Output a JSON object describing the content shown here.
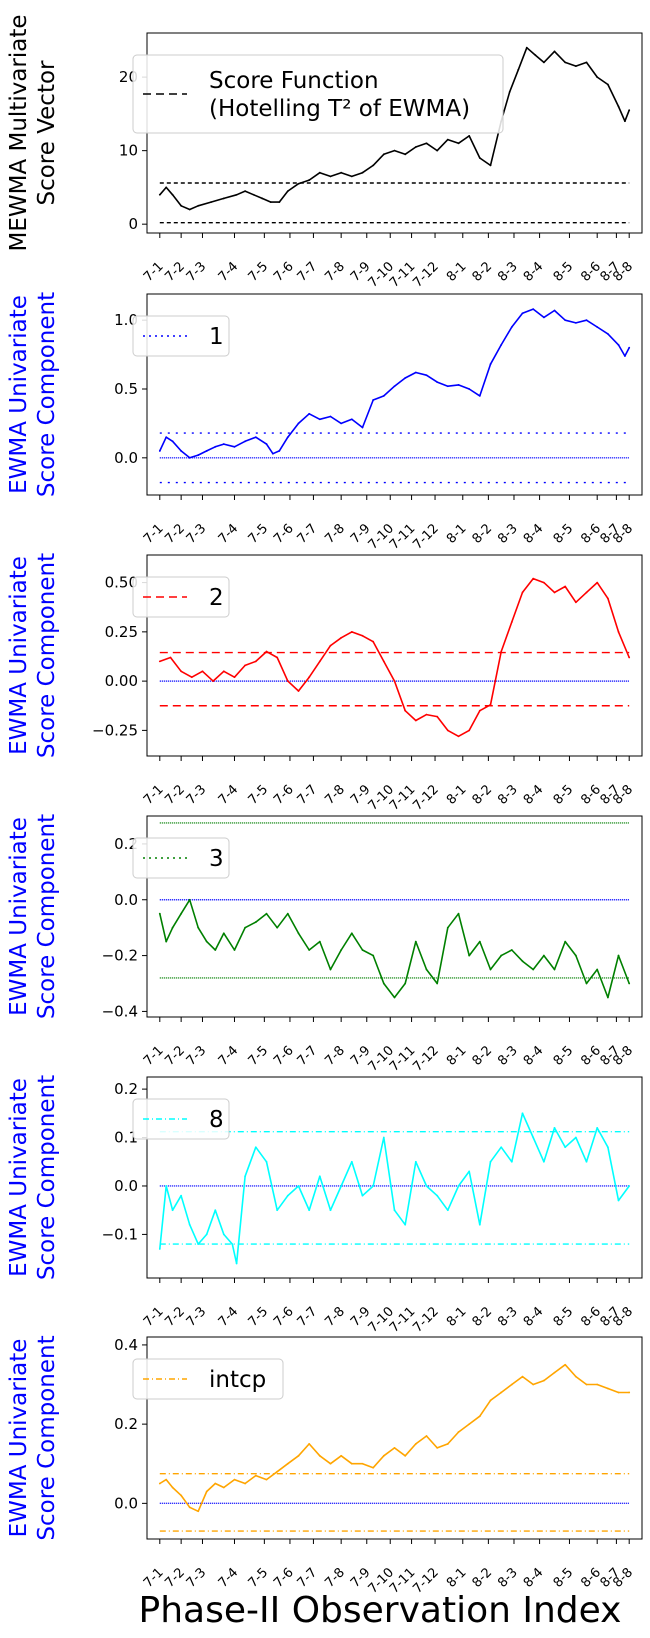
{
  "figure": {
    "xlabel": "Phase-II Observation Index"
  },
  "chart_data": [
    {
      "type": "line",
      "ylabel": [
        "MEWMA Multivariate",
        "Score Vector"
      ],
      "ylabel_color": "#000000",
      "ylim": [
        -1.2,
        26
      ],
      "yticks": [
        0,
        10,
        20
      ],
      "ytick_labels": [
        "0",
        "10",
        "20"
      ],
      "legend": {
        "label": [
          "Score Function",
          "(Hotelling T² of EWMA)"
        ],
        "style": "dashed",
        "color": "#000000",
        "placement": "upper-left"
      },
      "series": [
        {
          "color": "#000000",
          "x": [
            0,
            0.3,
            0.6,
            1.0,
            1.4,
            1.8,
            2.4,
            3.0,
            3.6,
            4.0,
            4.4,
            4.8,
            5.2,
            5.6,
            6.0,
            6.5,
            7.0,
            7.5,
            8.0,
            8.5,
            9.0,
            9.5,
            10.0,
            10.5,
            11.0,
            11.5,
            12.0,
            12.5,
            13.0,
            13.5,
            14.0,
            14.5,
            15.0,
            15.5,
            16.0,
            16.4,
            16.8,
            17.2,
            17.6,
            18.0,
            18.5,
            19.0,
            19.5,
            20.0,
            20.5,
            21.0,
            21.5,
            21.8,
            22.0
          ],
          "y": [
            4,
            5,
            4,
            2.5,
            2,
            2.5,
            3,
            3.5,
            4,
            4.5,
            4,
            3.5,
            3,
            3,
            4.5,
            5.5,
            6,
            7,
            6.5,
            7,
            6.5,
            7,
            8,
            9.5,
            10,
            9.5,
            10.5,
            11,
            10,
            11.5,
            11,
            12,
            9,
            8,
            14,
            18,
            21,
            24,
            23,
            22,
            23.5,
            22,
            21.5,
            22,
            20,
            19,
            16,
            14,
            15.5
          ]
        }
      ],
      "hlines": [
        {
          "y": 5.6,
          "color": "#000000",
          "dash": "4 3"
        },
        {
          "y": 0.2,
          "color": "#000000",
          "dash": "4 3"
        }
      ]
    },
    {
      "type": "line",
      "ylabel": [
        "EWMA Univariate",
        "Score Component"
      ],
      "ylabel_color": "#0000ff",
      "ylim": [
        -0.27,
        1.19
      ],
      "yticks": [
        0,
        0.5,
        1.0
      ],
      "ytick_labels": [
        "0.0",
        "0.5",
        "1.0"
      ],
      "legend": {
        "label": [
          "1"
        ],
        "style": "dotted",
        "color": "#0000ff",
        "placement": "upper-left"
      },
      "series": [
        {
          "color": "#0000ff",
          "x": [
            0,
            0.3,
            0.6,
            1.0,
            1.4,
            1.8,
            2.2,
            2.6,
            3.0,
            3.5,
            4.0,
            4.5,
            5.0,
            5.3,
            5.6,
            6.0,
            6.5,
            7.0,
            7.5,
            8.0,
            8.5,
            9.0,
            9.5,
            10.0,
            10.5,
            11.0,
            11.5,
            12.0,
            12.5,
            13.0,
            13.5,
            14.0,
            14.5,
            15.0,
            15.5,
            16.0,
            16.5,
            17.0,
            17.5,
            18.0,
            18.5,
            19.0,
            19.5,
            20.0,
            20.5,
            21.0,
            21.5,
            21.8,
            22.0
          ],
          "y": [
            0.05,
            0.15,
            0.12,
            0.05,
            0,
            0.02,
            0.05,
            0.08,
            0.1,
            0.08,
            0.12,
            0.15,
            0.1,
            0.03,
            0.05,
            0.15,
            0.25,
            0.32,
            0.28,
            0.3,
            0.25,
            0.28,
            0.22,
            0.42,
            0.45,
            0.52,
            0.58,
            0.62,
            0.6,
            0.55,
            0.52,
            0.53,
            0.5,
            0.45,
            0.68,
            0.82,
            0.95,
            1.05,
            1.08,
            1.02,
            1.07,
            1.0,
            0.98,
            1.0,
            0.95,
            0.9,
            0.82,
            0.74,
            0.8
          ]
        }
      ],
      "hlines": [
        {
          "y": 0.18,
          "color": "#0000ff",
          "dash": "2 6"
        },
        {
          "y": 0,
          "color": "#0000ff",
          "dash": "1 1"
        },
        {
          "y": -0.18,
          "color": "#0000ff",
          "dash": "2 6"
        }
      ]
    },
    {
      "type": "line",
      "ylabel": [
        "EWMA Univariate",
        "Score Component"
      ],
      "ylabel_color": "#0000ff",
      "ylim": [
        -0.38,
        0.64
      ],
      "yticks": [
        -0.25,
        0,
        0.25,
        0.5
      ],
      "ytick_labels": [
        "−0.25",
        "0.00",
        "0.25",
        "0.50"
      ],
      "legend": {
        "label": [
          "2"
        ],
        "style": "dashed",
        "color": "#ff0000",
        "placement": "upper-left"
      },
      "series": [
        {
          "color": "#ff0000",
          "x": [
            0,
            0.5,
            1.0,
            1.5,
            2.0,
            2.5,
            3.0,
            3.5,
            4.0,
            4.5,
            5.0,
            5.5,
            6.0,
            6.5,
            7.0,
            7.5,
            8.0,
            8.5,
            9.0,
            9.5,
            10.0,
            10.5,
            11.0,
            11.5,
            12.0,
            12.5,
            13.0,
            13.5,
            14.0,
            14.5,
            15.0,
            15.5,
            16.0,
            16.5,
            17.0,
            17.5,
            18.0,
            18.5,
            19.0,
            19.5,
            20.0,
            20.5,
            21.0,
            21.5,
            22.0
          ],
          "y": [
            0.1,
            0.12,
            0.05,
            0.02,
            0.05,
            0.0,
            0.05,
            0.02,
            0.08,
            0.1,
            0.15,
            0.12,
            0.0,
            -0.05,
            0.02,
            0.1,
            0.18,
            0.22,
            0.25,
            0.23,
            0.2,
            0.1,
            0.0,
            -0.15,
            -0.2,
            -0.17,
            -0.18,
            -0.25,
            -0.28,
            -0.25,
            -0.15,
            -0.12,
            0.15,
            0.3,
            0.45,
            0.52,
            0.5,
            0.45,
            0.48,
            0.4,
            0.45,
            0.5,
            0.42,
            0.25,
            0.12
          ]
        }
      ],
      "hlines": [
        {
          "y": 0.145,
          "color": "#ff0000",
          "dash": "8 5"
        },
        {
          "y": 0,
          "color": "#0000ff",
          "dash": "1 1"
        },
        {
          "y": -0.125,
          "color": "#ff0000",
          "dash": "8 5"
        }
      ]
    },
    {
      "type": "line",
      "ylabel": [
        "EWMA Univariate",
        "Score Component"
      ],
      "ylabel_color": "#0000ff",
      "ylim": [
        -0.42,
        0.3
      ],
      "yticks": [
        -0.4,
        -0.2,
        0,
        0.2
      ],
      "ytick_labels": [
        "−0.4",
        "−0.2",
        "0.0",
        "0.2"
      ],
      "legend": {
        "label": [
          "3"
        ],
        "style": "dotted",
        "color": "#008000",
        "placement": "upper-left"
      },
      "series": [
        {
          "color": "#008000",
          "x": [
            0,
            0.3,
            0.6,
            1.0,
            1.4,
            1.8,
            2.2,
            2.6,
            3.0,
            3.5,
            4.0,
            4.5,
            5.0,
            5.5,
            6.0,
            6.5,
            7.0,
            7.5,
            8.0,
            8.5,
            9.0,
            9.5,
            10.0,
            10.5,
            11.0,
            11.5,
            12.0,
            12.5,
            13.0,
            13.5,
            14.0,
            14.5,
            15.0,
            15.5,
            16.0,
            16.5,
            17.0,
            17.5,
            18.0,
            18.5,
            19.0,
            19.5,
            20.0,
            20.5,
            21.0,
            21.5,
            22.0
          ],
          "y": [
            -0.05,
            -0.15,
            -0.1,
            -0.05,
            0.0,
            -0.1,
            -0.15,
            -0.18,
            -0.12,
            -0.18,
            -0.1,
            -0.08,
            -0.05,
            -0.1,
            -0.05,
            -0.12,
            -0.18,
            -0.15,
            -0.25,
            -0.18,
            -0.12,
            -0.18,
            -0.2,
            -0.3,
            -0.35,
            -0.3,
            -0.15,
            -0.25,
            -0.3,
            -0.1,
            -0.05,
            -0.2,
            -0.15,
            -0.25,
            -0.2,
            -0.18,
            -0.22,
            -0.25,
            -0.2,
            -0.25,
            -0.15,
            -0.2,
            -0.3,
            -0.25,
            -0.35,
            -0.2,
            -0.3
          ]
        }
      ],
      "hlines": [
        {
          "y": 0.275,
          "color": "#008000",
          "dash": "1 1"
        },
        {
          "y": 0,
          "color": "#0000ff",
          "dash": "1 1"
        },
        {
          "y": -0.28,
          "color": "#008000",
          "dash": "1 1"
        }
      ]
    },
    {
      "type": "line",
      "ylabel": [
        "EWMA Univariate",
        "Score Component"
      ],
      "ylabel_color": "#0000ff",
      "ylim": [
        -0.19,
        0.225
      ],
      "yticks": [
        -0.1,
        0,
        0.1,
        0.2
      ],
      "ytick_labels": [
        "−0.1",
        "0.0",
        "0.1",
        "0.2"
      ],
      "legend": {
        "label": [
          "8"
        ],
        "style": "dashdot",
        "color": "#00ffff",
        "placement": "upper-left"
      },
      "series": [
        {
          "color": "#00ffff",
          "x": [
            0,
            0.3,
            0.6,
            1.0,
            1.4,
            1.8,
            2.2,
            2.6,
            3.0,
            3.4,
            3.6,
            4.0,
            4.5,
            5.0,
            5.5,
            6.0,
            6.5,
            7.0,
            7.5,
            8.0,
            8.5,
            9.0,
            9.5,
            10.0,
            10.5,
            11.0,
            11.5,
            12.0,
            12.5,
            13.0,
            13.5,
            14.0,
            14.5,
            15.0,
            15.5,
            16.0,
            16.5,
            17.0,
            17.5,
            18.0,
            18.5,
            19.0,
            19.5,
            20.0,
            20.5,
            21.0,
            21.5,
            22.0
          ],
          "y": [
            -0.13,
            0.0,
            -0.05,
            -0.02,
            -0.08,
            -0.12,
            -0.1,
            -0.05,
            -0.1,
            -0.12,
            -0.16,
            0.02,
            0.08,
            0.05,
            -0.05,
            -0.02,
            0.0,
            -0.05,
            0.02,
            -0.05,
            0.0,
            0.05,
            -0.02,
            0.0,
            0.1,
            -0.05,
            -0.08,
            0.05,
            0.0,
            -0.02,
            -0.05,
            0.0,
            0.03,
            -0.08,
            0.05,
            0.08,
            0.05,
            0.15,
            0.1,
            0.05,
            0.12,
            0.08,
            0.1,
            0.05,
            0.12,
            0.08,
            -0.03,
            0.0
          ]
        }
      ],
      "hlines": [
        {
          "y": 0.112,
          "color": "#00ffff",
          "dash": "6 3 1 3"
        },
        {
          "y": 0,
          "color": "#0000ff",
          "dash": "1 1"
        },
        {
          "y": -0.12,
          "color": "#00ffff",
          "dash": "6 3 1 3"
        }
      ]
    },
    {
      "type": "line",
      "ylabel": [
        "EWMA Univariate",
        "Score Component"
      ],
      "ylabel_color": "#0000ff",
      "ylim": [
        -0.09,
        0.42
      ],
      "yticks": [
        0,
        0.2,
        0.4
      ],
      "ytick_labels": [
        "0.0",
        "0.2",
        "0.4"
      ],
      "legend": {
        "label": [
          "intcp"
        ],
        "style": "dashdot",
        "color": "#ffa500",
        "placement": "upper-left"
      },
      "series": [
        {
          "color": "#ffa500",
          "x": [
            0,
            0.3,
            0.6,
            1.0,
            1.4,
            1.8,
            2.2,
            2.6,
            3.0,
            3.5,
            4.0,
            4.5,
            5.0,
            5.5,
            6.0,
            6.5,
            7.0,
            7.5,
            8.0,
            8.5,
            9.0,
            9.5,
            10.0,
            10.5,
            11.0,
            11.5,
            12.0,
            12.5,
            13.0,
            13.5,
            14.0,
            14.5,
            15.0,
            15.5,
            16.0,
            16.5,
            17.0,
            17.5,
            18.0,
            18.5,
            19.0,
            19.5,
            20.0,
            20.5,
            21.0,
            21.5,
            22.0
          ],
          "y": [
            0.05,
            0.06,
            0.04,
            0.02,
            -0.01,
            -0.02,
            0.03,
            0.05,
            0.04,
            0.06,
            0.05,
            0.07,
            0.06,
            0.08,
            0.1,
            0.12,
            0.15,
            0.12,
            0.1,
            0.12,
            0.1,
            0.1,
            0.09,
            0.12,
            0.14,
            0.12,
            0.15,
            0.17,
            0.14,
            0.15,
            0.18,
            0.2,
            0.22,
            0.26,
            0.28,
            0.3,
            0.32,
            0.3,
            0.31,
            0.33,
            0.35,
            0.32,
            0.3,
            0.3,
            0.29,
            0.28,
            0.28
          ]
        }
      ],
      "hlines": [
        {
          "y": 0.075,
          "color": "#ffa500",
          "dash": "6 3 1 3"
        },
        {
          "y": 0,
          "color": "#0000ff",
          "dash": "1 1"
        },
        {
          "y": -0.07,
          "color": "#ffa500",
          "dash": "6 3 1 3"
        }
      ]
    }
  ],
  "xticks": [
    "7-1",
    "7-2",
    "7-3",
    "7-4",
    "7-5",
    "7-6",
    "7-7",
    "7-8",
    "7-9",
    "7-10",
    "7-11",
    "7-12",
    "8-1",
    "8-2",
    "8-3",
    "8-4",
    "8-5",
    "8-6",
    "8-7",
    "8-8"
  ],
  "xtick_positions": [
    0,
    1,
    2,
    3.5,
    4.9,
    6.1,
    7.2,
    8.5,
    9.7,
    10.8,
    11.8,
    12.9,
    14.2,
    15.4,
    16.6,
    17.8,
    19.2,
    20.5,
    21.4,
    22.0
  ],
  "xlim": [
    -0.6,
    22.6
  ]
}
